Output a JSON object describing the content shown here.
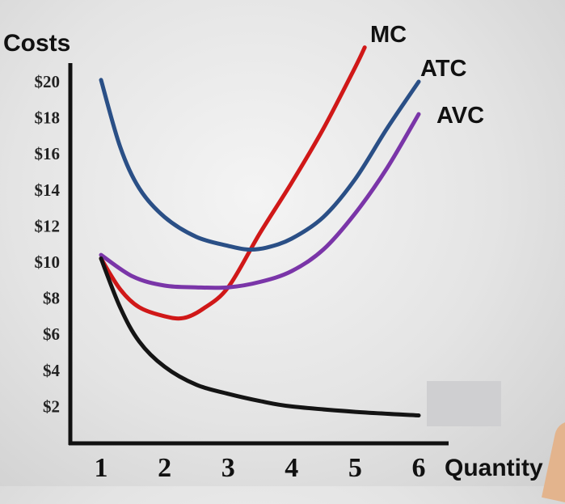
{
  "chart_data": {
    "type": "line",
    "ylabel": "Costs",
    "xlabel": "Quantity",
    "x_ticks": [
      "1",
      "2",
      "3",
      "4",
      "5",
      "6"
    ],
    "y_ticks": [
      "$20",
      "$18",
      "$16",
      "$14",
      "$12",
      "$10",
      "$8",
      "$6",
      "$4",
      "$2"
    ],
    "xlim": [
      1,
      6
    ],
    "ylim": [
      2,
      20
    ],
    "grid": false,
    "series": [
      {
        "name": "MC",
        "color": "#d01818",
        "points": [
          [
            1,
            10.2
          ],
          [
            1.3,
            8.5
          ],
          [
            1.6,
            7.5
          ],
          [
            2,
            7.0
          ],
          [
            2.3,
            6.9
          ],
          [
            2.6,
            7.4
          ],
          [
            3,
            8.6
          ],
          [
            3.5,
            11.6
          ],
          [
            4,
            14.4
          ],
          [
            4.5,
            17.4
          ],
          [
            5,
            20.8
          ],
          [
            5.15,
            21.9
          ]
        ]
      },
      {
        "name": "ATC",
        "color": "#2a4f86",
        "points": [
          [
            1,
            20.1
          ],
          [
            1.3,
            16.4
          ],
          [
            1.6,
            14.1
          ],
          [
            2,
            12.5
          ],
          [
            2.5,
            11.4
          ],
          [
            3,
            10.9
          ],
          [
            3.3,
            10.7
          ],
          [
            3.6,
            10.8
          ],
          [
            4,
            11.3
          ],
          [
            4.5,
            12.5
          ],
          [
            5,
            14.6
          ],
          [
            5.5,
            17.4
          ],
          [
            6,
            20.0
          ]
        ]
      },
      {
        "name": "AVC",
        "color": "#7a35a8",
        "points": [
          [
            1,
            10.4
          ],
          [
            1.5,
            9.2
          ],
          [
            2,
            8.7
          ],
          [
            2.5,
            8.6
          ],
          [
            3,
            8.6
          ],
          [
            3.5,
            8.9
          ],
          [
            4,
            9.5
          ],
          [
            4.5,
            10.7
          ],
          [
            5,
            12.7
          ],
          [
            5.5,
            15.2
          ],
          [
            6,
            18.2
          ]
        ]
      },
      {
        "name": "",
        "color": "#141414",
        "points": [
          [
            1,
            10.2
          ],
          [
            1.3,
            7.5
          ],
          [
            1.6,
            5.6
          ],
          [
            2,
            4.2
          ],
          [
            2.5,
            3.2
          ],
          [
            3,
            2.7
          ],
          [
            3.5,
            2.3
          ],
          [
            4,
            2.0
          ],
          [
            5,
            1.7
          ],
          [
            6,
            1.5
          ]
        ]
      }
    ],
    "annotations": [
      "MC",
      "ATC",
      "AVC"
    ]
  }
}
